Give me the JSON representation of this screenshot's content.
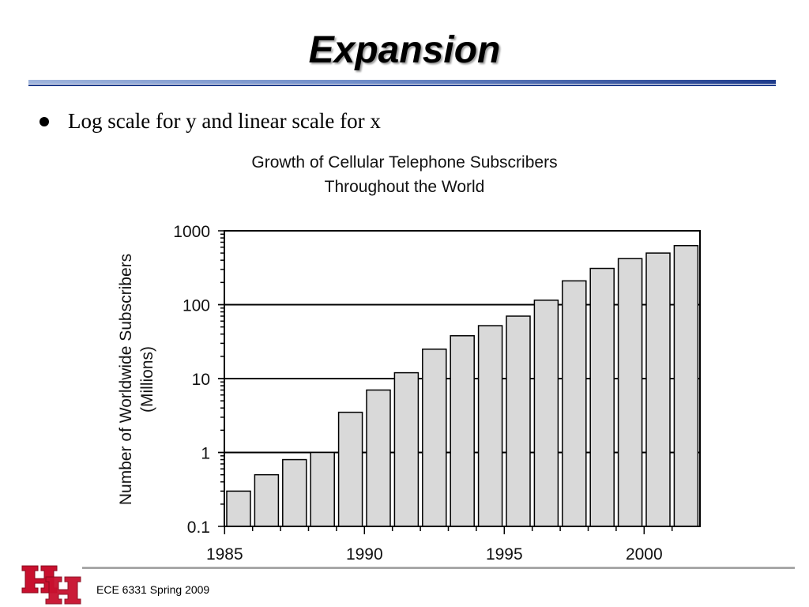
{
  "slide": {
    "title": "Expansion",
    "bullet": "Log scale for y and linear scale for x",
    "footer": "ECE 6331 Spring 2009",
    "logo_text": "UH"
  },
  "colors": {
    "rule_dark": "#1f3c8c",
    "rule_light": "#9fb4dc",
    "bar_fill": "#d9d9d9",
    "logo_red": "#c8102e"
  },
  "chart_data": {
    "type": "bar",
    "title_line1": "Growth of Cellular Telephone Subscribers",
    "title_line2": "Throughout the World",
    "ylabel_line1": "Number of Worldwide Subscribers",
    "ylabel_line2": "(Millions)",
    "xlabel": "",
    "y_scale": "log",
    "ylim": [
      0.1,
      1000
    ],
    "y_ticks": [
      "0.1",
      "1",
      "10",
      "100",
      "1000"
    ],
    "x_ticks": [
      "1985",
      "1990",
      "1995",
      "2000"
    ],
    "grid": "horizontal major lines",
    "categories": [
      1985,
      1986,
      1987,
      1988,
      1989,
      1990,
      1991,
      1992,
      1993,
      1994,
      1995,
      1996,
      1997,
      1998,
      1999,
      2000,
      2001
    ],
    "values": [
      0.3,
      0.5,
      0.8,
      1.0,
      3.5,
      7,
      12,
      25,
      38,
      52,
      70,
      115,
      210,
      310,
      420,
      500,
      630
    ]
  }
}
